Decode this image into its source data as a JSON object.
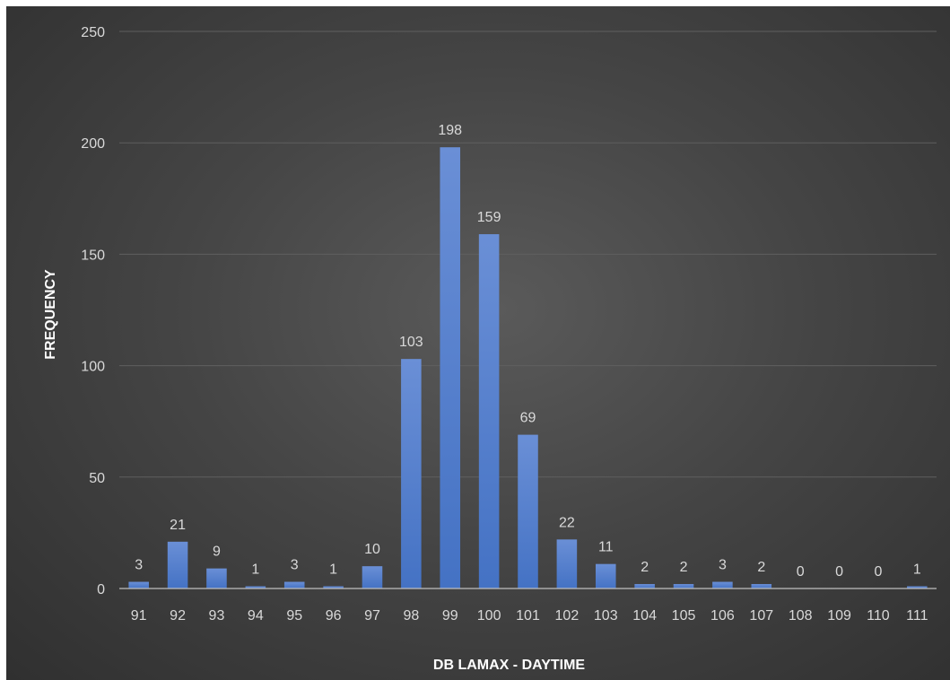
{
  "chart_data": {
    "type": "bar",
    "title": "",
    "xlabel": "DB LAMAX - DAYTIME",
    "ylabel": "FREQUENCY",
    "categories": [
      "91",
      "92",
      "93",
      "94",
      "95",
      "96",
      "97",
      "98",
      "99",
      "100",
      "101",
      "102",
      "103",
      "104",
      "105",
      "106",
      "107",
      "108",
      "109",
      "110",
      "111"
    ],
    "values": [
      3,
      21,
      9,
      1,
      3,
      1,
      10,
      103,
      198,
      159,
      69,
      22,
      11,
      2,
      2,
      3,
      2,
      0,
      0,
      0,
      1
    ],
    "ylim": [
      0,
      250
    ],
    "yticks": [
      0,
      50,
      100,
      150,
      200,
      250
    ],
    "grid": true,
    "legend": "none",
    "data_labels": true,
    "colors": {
      "bar": "#4472c4",
      "bar_light": "#6a8fd6",
      "gridline": "#5f5f5f",
      "axis": "#bfbfbf",
      "text": "#d9d9d9",
      "axis_title": "#ffffff"
    }
  }
}
